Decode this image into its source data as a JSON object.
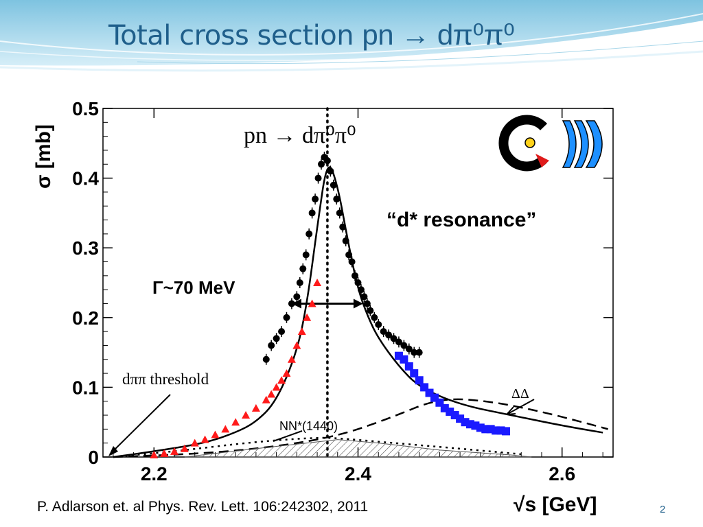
{
  "slide": {
    "title_text": "Total cross section ",
    "title_formula": "pn → dπ⁰π⁰",
    "citation": "P. Adlarson et. al Phys. Rev. Lett. 106:242302, 2011",
    "page_number": "2"
  },
  "colors": {
    "title": "#1f5f8b",
    "data_black": "#000000",
    "data_red": "#ff1a1a",
    "data_blue": "#1a1aff",
    "hatched": "#555555",
    "logo_red": "#e01b1b",
    "logo_blue": "#1e90ff",
    "logo_yellow": "#ffd21a"
  },
  "chart_data": {
    "type": "scatter",
    "title": "pn → dπ⁰π⁰",
    "xlabel": "√s [GeV]",
    "ylabel": "σ [mb]",
    "xlim": [
      2.15,
      2.65
    ],
    "ylim": [
      0,
      0.5
    ],
    "x_ticks": [
      2.2,
      2.4,
      2.6
    ],
    "x_tick_labels": [
      "2.2",
      "2.4",
      "2.6"
    ],
    "y_ticks": [
      0,
      0.1,
      0.2,
      0.3,
      0.4,
      0.5
    ],
    "y_tick_labels": [
      "0",
      "0.1",
      "0.2",
      "0.3",
      "0.4",
      "0.5"
    ],
    "grid": false,
    "legend": "none",
    "annotations": {
      "resonance": "“d* resonance”",
      "width": "Γ~70 MeV",
      "threshold": "dππ threshold",
      "nn_star": "NN*(1440)",
      "delta_delta": "ΔΔ",
      "logo_name": "WASA logo"
    },
    "threshold_x": 2.155,
    "peak_line_x": 2.37,
    "fwhm": {
      "x_from": 2.335,
      "x_to": 2.405,
      "y": 0.22
    },
    "series": [
      {
        "name": "pn → dπ⁰π⁰ data",
        "color": "black",
        "marker": "circle",
        "x": [
          2.31,
          2.315,
          2.32,
          2.325,
          2.33,
          2.335,
          2.34,
          2.343,
          2.346,
          2.349,
          2.352,
          2.355,
          2.358,
          2.361,
          2.364,
          2.367,
          2.37,
          2.373,
          2.376,
          2.379,
          2.382,
          2.385,
          2.388,
          2.391,
          2.394,
          2.397,
          2.4,
          2.403,
          2.406,
          2.409,
          2.412,
          2.416,
          2.42,
          2.425,
          2.43,
          2.435,
          2.44,
          2.445,
          2.45,
          2.455,
          2.46
        ],
        "y": [
          0.14,
          0.16,
          0.17,
          0.18,
          0.2,
          0.22,
          0.23,
          0.25,
          0.27,
          0.29,
          0.32,
          0.35,
          0.37,
          0.4,
          0.42,
          0.43,
          0.425,
          0.41,
          0.39,
          0.37,
          0.35,
          0.33,
          0.31,
          0.29,
          0.28,
          0.26,
          0.25,
          0.24,
          0.23,
          0.22,
          0.21,
          0.2,
          0.19,
          0.18,
          0.175,
          0.17,
          0.165,
          0.16,
          0.155,
          0.15,
          0.15
        ]
      },
      {
        "name": "red data",
        "color": "red",
        "marker": "triangle",
        "x": [
          2.2,
          2.21,
          2.22,
          2.23,
          2.24,
          2.25,
          2.26,
          2.27,
          2.28,
          2.29,
          2.3,
          2.31,
          2.315,
          2.32,
          2.325,
          2.33,
          2.335,
          2.34,
          2.345,
          2.35,
          2.355,
          2.36
        ],
        "y": [
          0.003,
          0.005,
          0.008,
          0.012,
          0.02,
          0.025,
          0.032,
          0.04,
          0.05,
          0.06,
          0.07,
          0.082,
          0.09,
          0.1,
          0.11,
          0.12,
          0.14,
          0.16,
          0.18,
          0.2,
          0.22,
          0.25
        ]
      },
      {
        "name": "blue data",
        "color": "blue",
        "marker": "square",
        "x": [
          2.44,
          2.445,
          2.45,
          2.455,
          2.46,
          2.465,
          2.47,
          2.475,
          2.48,
          2.485,
          2.49,
          2.495,
          2.5,
          2.505,
          2.51,
          2.515,
          2.52,
          2.525,
          2.53,
          2.535,
          2.54,
          2.545
        ],
        "y": [
          0.145,
          0.14,
          0.13,
          0.12,
          0.11,
          0.1,
          0.092,
          0.085,
          0.078,
          0.07,
          0.065,
          0.06,
          0.055,
          0.05,
          0.047,
          0.045,
          0.042,
          0.04,
          0.04,
          0.038,
          0.038,
          0.037
        ]
      }
    ],
    "curves": [
      {
        "name": "fit",
        "style": "solid",
        "x": [
          2.16,
          2.2,
          2.25,
          2.28,
          2.3,
          2.32,
          2.34,
          2.35,
          2.36,
          2.37,
          2.38,
          2.39,
          2.4,
          2.41,
          2.42,
          2.44,
          2.46,
          2.5,
          2.55,
          2.6,
          2.64
        ],
        "y": [
          0.0,
          0.008,
          0.02,
          0.035,
          0.05,
          0.08,
          0.15,
          0.22,
          0.33,
          0.43,
          0.39,
          0.31,
          0.24,
          0.2,
          0.17,
          0.13,
          0.1,
          0.075,
          0.06,
          0.045,
          0.035
        ]
      },
      {
        "name": "ΔΔ",
        "style": "dashed",
        "x": [
          2.16,
          2.25,
          2.32,
          2.38,
          2.43,
          2.48,
          2.53,
          2.58,
          2.62,
          2.645
        ],
        "y": [
          0.0,
          0.005,
          0.015,
          0.03,
          0.055,
          0.085,
          0.08,
          0.065,
          0.05,
          0.04
        ]
      },
      {
        "name": "NN*(1440)",
        "style": "dotted",
        "x": [
          2.16,
          2.22,
          2.3,
          2.36,
          2.38,
          2.42,
          2.5,
          2.56
        ],
        "y": [
          0.0,
          0.008,
          0.022,
          0.028,
          0.027,
          0.022,
          0.012,
          0.004
        ]
      },
      {
        "name": "hatched",
        "style": "filled-hatch",
        "x": [
          2.23,
          2.3,
          2.35,
          2.38,
          2.42,
          2.48,
          2.55,
          2.57
        ],
        "y": [
          0.0,
          0.012,
          0.02,
          0.025,
          0.02,
          0.01,
          0.003,
          0.0
        ]
      }
    ]
  }
}
